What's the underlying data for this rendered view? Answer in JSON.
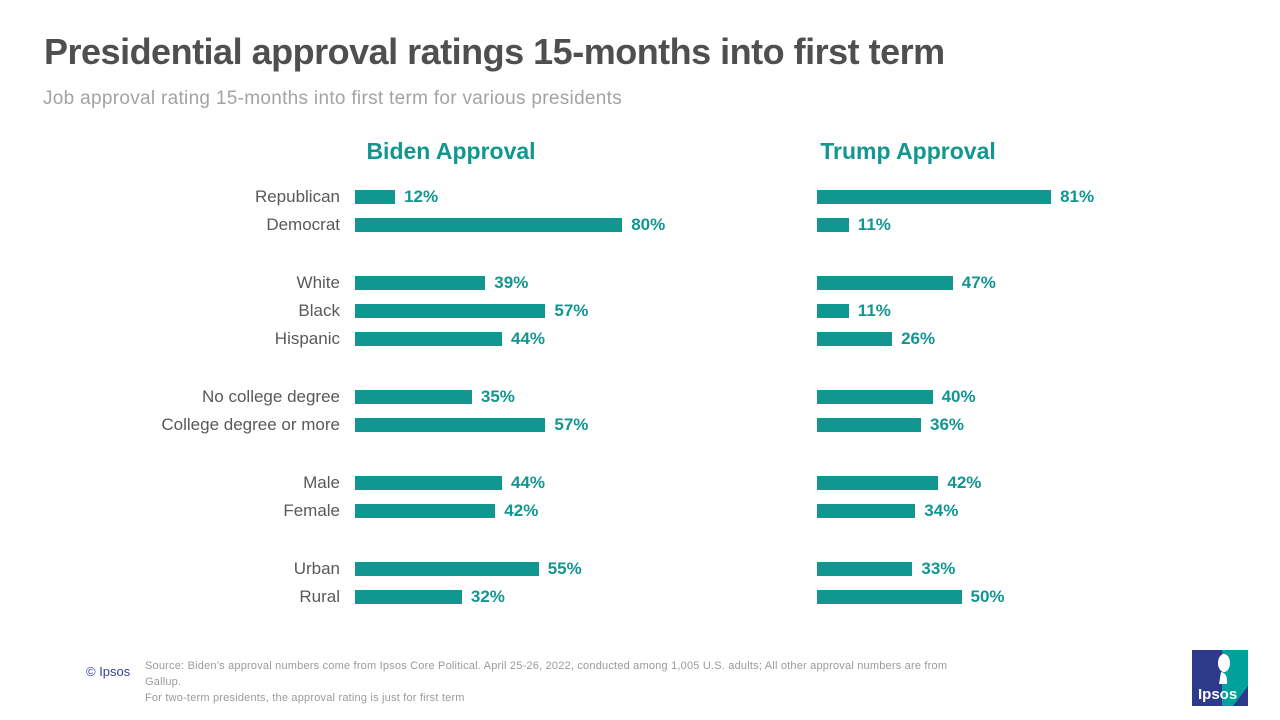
{
  "page": {
    "title": "Presidential approval ratings 15-months into first term",
    "subtitle": "Job approval rating 15-months into first term for various presidents"
  },
  "chart_data": {
    "type": "bar",
    "orientation": "horizontal",
    "value_suffix": "%",
    "xlim": [
      0,
      100
    ],
    "bar_color": "#119690",
    "grid": false,
    "categories": [
      "Republican",
      "Democrat",
      "White",
      "Black",
      "Hispanic",
      "No college degree",
      "College degree or more",
      "Male",
      "Female",
      "Urban",
      "Rural"
    ],
    "groups": [
      [
        0,
        1
      ],
      [
        2,
        3,
        4
      ],
      [
        5,
        6
      ],
      [
        7,
        8
      ],
      [
        9,
        10
      ]
    ],
    "series": [
      {
        "name": "Biden Approval",
        "values": [
          12,
          80,
          39,
          57,
          44,
          35,
          57,
          44,
          42,
          55,
          32
        ]
      },
      {
        "name": "Trump Approval",
        "values": [
          81,
          11,
          47,
          11,
          26,
          40,
          36,
          42,
          34,
          33,
          50
        ]
      }
    ]
  },
  "footer": {
    "copyright": "© Ipsos",
    "source_line1": "Source: Biden’s approval numbers come from Ipsos Core Political.  April 25-26, 2022, conducted among 1,005 U.S. adults; All other approval numbers are from Gallup.",
    "source_line2": "For two-term presidents, the approval rating is just for first term",
    "logo_text": "Ipsos"
  }
}
